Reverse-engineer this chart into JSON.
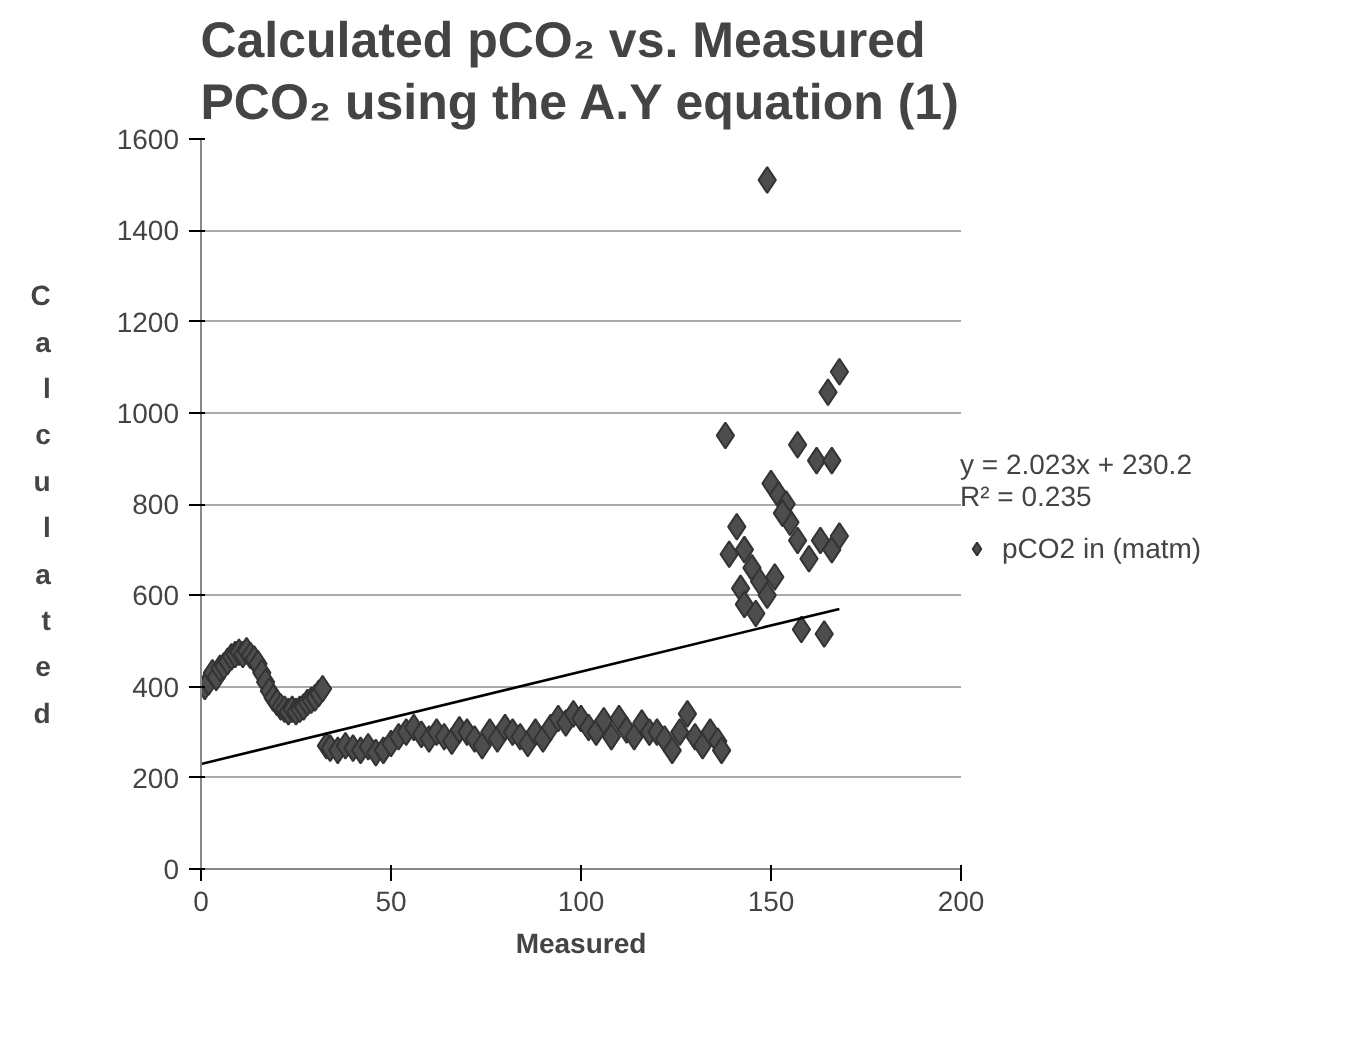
{
  "chart_data": {
    "type": "scatter",
    "title": "Calculated pCO₂ vs. Measured PCO₂ using the A.Y equation (1)",
    "xlabel": "Measured",
    "ylabel": "Calculated",
    "xlim": [
      0,
      200
    ],
    "ylim": [
      0,
      1600
    ],
    "xticks": [
      0,
      50,
      100,
      150,
      200
    ],
    "yticks": [
      0,
      200,
      400,
      600,
      800,
      1000,
      1200,
      1400,
      1600
    ],
    "grid": "y",
    "legend": "right",
    "marker": "diamond",
    "annotations": [
      "y = 2.023x + 230.2\nR² = 0.235"
    ],
    "series": [
      {
        "name": "pCO2 in (matm)",
        "color": "#4d4d4d",
        "x": [
          1,
          2,
          3,
          4,
          5,
          6,
          7,
          8,
          9,
          10,
          11,
          12,
          13,
          14,
          15,
          16,
          17,
          18,
          19,
          20,
          21,
          22,
          23,
          24,
          25,
          26,
          27,
          28,
          29,
          30,
          31,
          32,
          33,
          34,
          36,
          38,
          40,
          42,
          44,
          46,
          48,
          50,
          52,
          54,
          56,
          58,
          60,
          62,
          64,
          66,
          68,
          70,
          72,
          74,
          76,
          78,
          80,
          82,
          84,
          86,
          88,
          90,
          92,
          94,
          96,
          98,
          100,
          102,
          104,
          106,
          108,
          110,
          112,
          114,
          116,
          118,
          120,
          122,
          124,
          126,
          128,
          130,
          132,
          134,
          136,
          137,
          149,
          138,
          168,
          165,
          157,
          162,
          166,
          150,
          152,
          154,
          141,
          143,
          139,
          145,
          147,
          142,
          143,
          146,
          149,
          155,
          157,
          160,
          163,
          166,
          168,
          158,
          164,
          153,
          151
        ],
        "values": [
          400,
          410,
          430,
          420,
          440,
          445,
          455,
          465,
          470,
          475,
          470,
          478,
          468,
          460,
          450,
          430,
          410,
          390,
          375,
          365,
          355,
          350,
          345,
          350,
          345,
          350,
          355,
          365,
          370,
          375,
          385,
          395,
          270,
          265,
          260,
          270,
          265,
          260,
          268,
          255,
          260,
          275,
          290,
          300,
          310,
          295,
          285,
          300,
          290,
          280,
          305,
          300,
          285,
          270,
          300,
          285,
          310,
          300,
          290,
          275,
          300,
          285,
          310,
          330,
          320,
          340,
          330,
          310,
          300,
          325,
          290,
          330,
          305,
          290,
          320,
          300,
          300,
          285,
          260,
          300,
          340,
          290,
          270,
          300,
          280,
          260,
          1510,
          950,
          1090,
          1045,
          930,
          895,
          895,
          845,
          820,
          800,
          750,
          700,
          690,
          660,
          630,
          615,
          580,
          560,
          600,
          760,
          720,
          680,
          720,
          700,
          730,
          525,
          515,
          780,
          640
        ]
      },
      {
        "type": "line",
        "color": "#000000",
        "marker": "none",
        "x": [
          0,
          168
        ],
        "values": [
          230.2,
          570.06
        ]
      }
    ]
  }
}
